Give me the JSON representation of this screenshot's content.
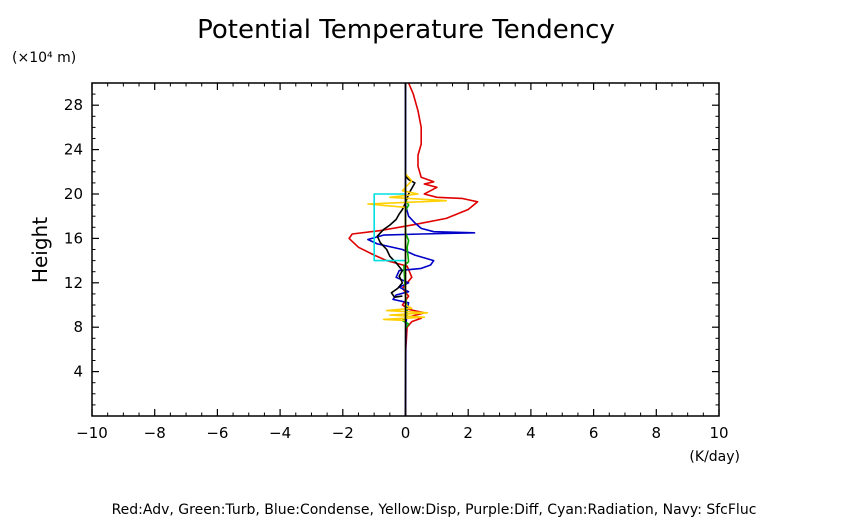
{
  "chart_data": {
    "type": "line",
    "title": "Potential Temperature Tendency",
    "y_unit_label": "(×10⁴ m)",
    "ylabel": "Height",
    "x_unit_label": "(K/day)",
    "caption": "Red:Adv, Green:Turb, Blue:Condense, Yellow:Disp, Purple:Diff, Cyan:Radiation, Navy: SfcFluc",
    "xlim": [
      -10,
      10
    ],
    "ylim": [
      0,
      30
    ],
    "x_ticks": [
      -10,
      -8,
      -6,
      -4,
      -2,
      0,
      2,
      4,
      6,
      8,
      10
    ],
    "x_tick_labels": [
      "−10",
      "−8",
      "−6",
      "−4",
      "−2",
      "0",
      "2",
      "4",
      "6",
      "8",
      "10"
    ],
    "y_ticks": [
      4,
      8,
      12,
      16,
      20,
      24,
      28
    ],
    "y_tick_labels": [
      "4",
      "8",
      "12",
      "16",
      "20",
      "24",
      "28"
    ],
    "grid": false,
    "series": [
      {
        "color": "#e00000",
        "points": [
          [
            0,
            0
          ],
          [
            0.01,
            6
          ],
          [
            0.05,
            8
          ],
          [
            0.2,
            8.5
          ],
          [
            0.5,
            8.8
          ],
          [
            0.2,
            9.0
          ],
          [
            0.6,
            9.3
          ],
          [
            0.1,
            9.6
          ],
          [
            -0.1,
            10
          ],
          [
            0.1,
            10.8
          ],
          [
            -0.1,
            11.5
          ],
          [
            0.2,
            12.5
          ],
          [
            0.05,
            13.5
          ],
          [
            -0.6,
            14
          ],
          [
            -1.0,
            14.5
          ],
          [
            -1.5,
            15.2
          ],
          [
            -1.8,
            16.0
          ],
          [
            -1.7,
            16.4
          ],
          [
            -0.8,
            16.7
          ],
          [
            0.2,
            17.2
          ],
          [
            1.3,
            17.8
          ],
          [
            2.0,
            18.6
          ],
          [
            2.3,
            19.3
          ],
          [
            1.8,
            19.6
          ],
          [
            1.0,
            19.7
          ],
          [
            0.6,
            20.0
          ],
          [
            0.8,
            20.3
          ],
          [
            1.0,
            20.6
          ],
          [
            0.6,
            20.9
          ],
          [
            0.9,
            21.1
          ],
          [
            0.5,
            21.5
          ],
          [
            0.4,
            22.5
          ],
          [
            0.4,
            23.5
          ],
          [
            0.5,
            24.5
          ],
          [
            0.5,
            26
          ],
          [
            0.4,
            27.5
          ],
          [
            0.25,
            29
          ],
          [
            0.1,
            30
          ]
        ]
      },
      {
        "color": "#0000c8",
        "points": [
          [
            0,
            0
          ],
          [
            0.01,
            8
          ],
          [
            0.05,
            9.5
          ],
          [
            0.1,
            10.2
          ],
          [
            -0.4,
            10.5
          ],
          [
            -0.3,
            10.9
          ],
          [
            0.1,
            11.2
          ],
          [
            -0.2,
            11.6
          ],
          [
            0.1,
            12.0
          ],
          [
            -0.3,
            12.5
          ],
          [
            -0.2,
            13.1
          ],
          [
            0.5,
            13.3
          ],
          [
            0.8,
            13.6
          ],
          [
            0.9,
            14.0
          ],
          [
            0.3,
            14.5
          ],
          [
            -0.1,
            15.0
          ],
          [
            -0.9,
            15.5
          ],
          [
            -1.2,
            15.9
          ],
          [
            -0.7,
            16.3
          ],
          [
            0.5,
            16.4
          ],
          [
            2.2,
            16.5
          ],
          [
            0.9,
            16.6
          ],
          [
            0.5,
            16.9
          ],
          [
            0.3,
            17.4
          ],
          [
            0.1,
            18.0
          ],
          [
            0.0,
            19.0
          ],
          [
            0.0,
            20.5
          ],
          [
            0.0,
            30
          ]
        ]
      },
      {
        "color": "#000000",
        "points": [
          [
            -0.1,
            10.8
          ],
          [
            -0.35,
            10.7
          ],
          [
            -0.45,
            11.1
          ],
          [
            -0.25,
            11.5
          ],
          [
            -0.1,
            12.0
          ],
          [
            -0.2,
            12.6
          ],
          [
            -0.1,
            13.1
          ],
          [
            -0.3,
            13.8
          ],
          [
            -0.5,
            14.4
          ],
          [
            -0.6,
            15.0
          ],
          [
            -0.8,
            15.6
          ],
          [
            -0.9,
            16.2
          ],
          [
            -0.7,
            16.8
          ],
          [
            -0.5,
            17.2
          ],
          [
            -0.3,
            17.7
          ],
          [
            -0.2,
            18.2
          ],
          [
            -0.1,
            18.6
          ],
          [
            0.0,
            19.2
          ],
          [
            0.1,
            20.0
          ],
          [
            0.2,
            20.5
          ],
          [
            0.3,
            21.0
          ],
          [
            0.1,
            21.3
          ],
          [
            0.0,
            21.6
          ]
        ]
      },
      {
        "color": "#00b400",
        "points": [
          [
            0,
            7.9
          ],
          [
            0.1,
            8.3
          ],
          [
            -0.1,
            8.6
          ],
          [
            0.05,
            9.0
          ],
          [
            0.0,
            11.0
          ],
          [
            -0.05,
            13.5
          ],
          [
            0.1,
            13.9
          ],
          [
            0.05,
            15.2
          ],
          [
            0.1,
            15.8
          ],
          [
            0.0,
            16.5
          ],
          [
            0.0,
            18.5
          ],
          [
            0.1,
            19.0
          ],
          [
            0.0,
            19.5
          ]
        ]
      },
      {
        "color": "#ffd000",
        "points": [
          [
            0,
            8.6
          ],
          [
            -0.7,
            8.7
          ],
          [
            0.6,
            8.9
          ],
          [
            -0.5,
            9.1
          ],
          [
            0.7,
            9.3
          ],
          [
            -0.6,
            9.5
          ],
          [
            0.2,
            9.7
          ],
          [
            0.0,
            10.0
          ],
          [
            0.0,
            18.8
          ],
          [
            -1.2,
            19.1
          ],
          [
            1.3,
            19.4
          ],
          [
            -0.5,
            19.7
          ],
          [
            0.4,
            20.0
          ],
          [
            -0.1,
            20.3
          ],
          [
            0.0,
            20.6
          ],
          [
            0.2,
            21.2
          ],
          [
            0.0,
            21.8
          ]
        ]
      },
      {
        "color": "#00e0e0",
        "points": [
          [
            0,
            14
          ],
          [
            -1.0,
            14
          ],
          [
            -1.0,
            20
          ],
          [
            0,
            20
          ]
        ]
      },
      {
        "color": "#000000",
        "points": [
          [
            0,
            0
          ],
          [
            0,
            30
          ]
        ]
      }
    ]
  }
}
